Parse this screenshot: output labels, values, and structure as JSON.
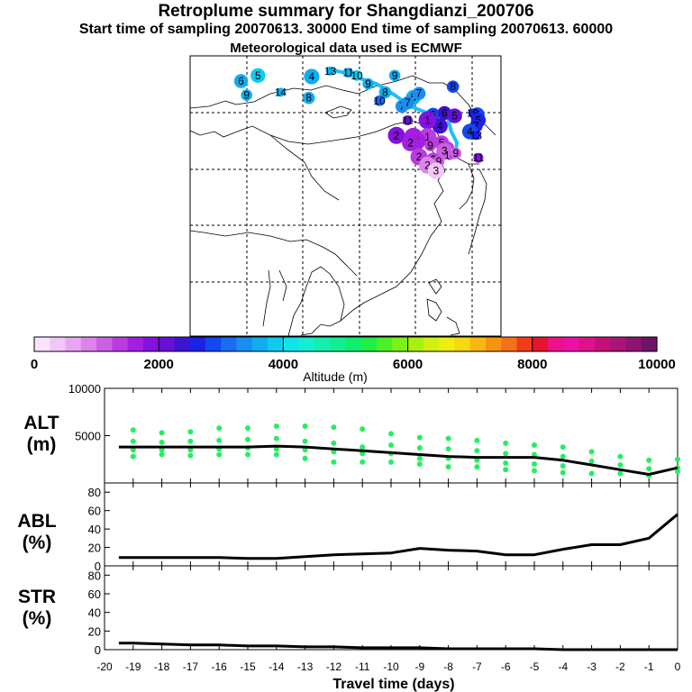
{
  "header": {
    "title": "Retroplume summary for Shangdianzi_200706",
    "sampling_line": "Start time of sampling 20070613. 30000     End time of sampling 20070613. 60000",
    "met_line": "Meteorological data used is ECMWF"
  },
  "colorbar": {
    "label": "Altitude (m)",
    "ticks": [
      "0",
      "2000",
      "4000",
      "6000",
      "8000",
      "10000"
    ],
    "colors": [
      "#fbe3fb",
      "#f2c6f6",
      "#e8a6f0",
      "#dc84ea",
      "#cc5fe4",
      "#ba3be0",
      "#a21fe0",
      "#8412de",
      "#6610d6",
      "#3e12d2",
      "#1c22e8",
      "#1448f0",
      "#1a6cf0",
      "#1a8ef0",
      "#10aef0",
      "#10cbee",
      "#12e3ea",
      "#14efd2",
      "#14efb0",
      "#12ef90",
      "#10ef6c",
      "#20ef46",
      "#4cef2a",
      "#7ef01a",
      "#a8f010",
      "#d0f010",
      "#eeee10",
      "#f6d810",
      "#f8b810",
      "#f69410",
      "#f4701a",
      "#f03c18",
      "#e6142e",
      "#ee108a",
      "#ee10a6",
      "#e0108c",
      "#c41078",
      "#aa1474",
      "#8c1470",
      "#6c1466"
    ]
  },
  "map": {
    "labels": [
      {
        "t": "13",
        "lon": 104.8,
        "lat": 54.3,
        "alt": 3600
      },
      {
        "t": "11",
        "lon": 108.0,
        "lat": 54.0,
        "alt": 3700
      },
      {
        "t": "10",
        "lon": 109.5,
        "lat": 53.5,
        "alt": 3800
      },
      {
        "t": "9",
        "lon": 111.5,
        "lat": 52.0,
        "alt": 3500
      },
      {
        "t": "9",
        "lon": 116.2,
        "lat": 53.5,
        "alt": 3600
      },
      {
        "t": "8",
        "lon": 114.5,
        "lat": 50.5,
        "alt": 3600
      },
      {
        "t": "8",
        "lon": 126.5,
        "lat": 51.5,
        "alt": 2800
      },
      {
        "t": "10",
        "lon": 113.5,
        "lat": 49.0,
        "alt": 3200
      },
      {
        "t": "5",
        "lon": 119.5,
        "lat": 49.6,
        "alt": 3700
      },
      {
        "t": "7",
        "lon": 120.5,
        "lat": 50.3,
        "alt": 3400
      },
      {
        "t": "7",
        "lon": 117.5,
        "lat": 48.0,
        "alt": 3300
      },
      {
        "t": "7",
        "lon": 118.5,
        "lat": 48.6,
        "alt": 3300
      },
      {
        "t": "6",
        "lon": 123.0,
        "lat": 46.5,
        "alt": 2900
      },
      {
        "t": "6",
        "lon": 125.0,
        "lat": 46.8,
        "alt": 2400
      },
      {
        "t": "5",
        "lon": 126.8,
        "lat": 46.3,
        "alt": 2200
      },
      {
        "t": "4",
        "lon": 124.2,
        "lat": 44.5,
        "alt": 2300
      },
      {
        "t": "5",
        "lon": 130.8,
        "lat": 46.5,
        "alt": 2800
      },
      {
        "t": "19",
        "lon": 130.0,
        "lat": 46.8,
        "alt": 2600
      },
      {
        "t": "5",
        "lon": 131.0,
        "lat": 45.5,
        "alt": 2600
      },
      {
        "t": "7",
        "lon": 130.6,
        "lat": 44.5,
        "alt": 2700
      },
      {
        "t": "4",
        "lon": 129.5,
        "lat": 43.5,
        "alt": 2800
      },
      {
        "t": "13",
        "lon": 130.6,
        "lat": 42.8,
        "alt": 2700
      },
      {
        "t": "1",
        "lon": 122.0,
        "lat": 45.5,
        "alt": 1800
      },
      {
        "t": "11",
        "lon": 118.5,
        "lat": 45.5,
        "alt": 2000
      },
      {
        "t": "2",
        "lon": 116.5,
        "lat": 42.8,
        "alt": 1900
      },
      {
        "t": "0",
        "lon": 119.5,
        "lat": 42.5,
        "alt": 1500
      },
      {
        "t": "1",
        "lon": 122.0,
        "lat": 42.5,
        "alt": 1400
      },
      {
        "t": "0",
        "lon": 120.0,
        "lat": 41.8,
        "alt": 1600
      },
      {
        "t": "2",
        "lon": 119.0,
        "lat": 41.5,
        "alt": 1500
      },
      {
        "t": "5",
        "lon": 124.5,
        "lat": 41.5,
        "alt": 1300
      },
      {
        "t": "9",
        "lon": 122.5,
        "lat": 41.0,
        "alt": 1400
      },
      {
        "t": "6",
        "lon": 125.5,
        "lat": 40.5,
        "alt": 1300
      },
      {
        "t": "3",
        "lon": 125.0,
        "lat": 40.0,
        "alt": 1000
      },
      {
        "t": "14",
        "lon": 126.0,
        "lat": 39.2,
        "alt": 1100
      },
      {
        "t": "9",
        "lon": 127.0,
        "lat": 39.6,
        "alt": 1200
      },
      {
        "t": "2",
        "lon": 120.5,
        "lat": 39.0,
        "alt": 1300
      },
      {
        "t": "6",
        "lon": 123.0,
        "lat": 38.5,
        "alt": 1400
      },
      {
        "t": "9",
        "lon": 124.0,
        "lat": 38.2,
        "alt": 1000
      },
      {
        "t": "2",
        "lon": 122.0,
        "lat": 37.5,
        "alt": 800
      },
      {
        "t": "3",
        "lon": 123.5,
        "lat": 36.5,
        "alt": 300
      },
      {
        "t": "11",
        "lon": 131.0,
        "lat": 38.8,
        "alt": 1900
      },
      {
        "t": "6",
        "lon": 89.0,
        "lat": 52.5,
        "alt": 3700
      },
      {
        "t": "5",
        "lon": 92.0,
        "lat": 53.5,
        "alt": 3800
      },
      {
        "t": "4",
        "lon": 101.5,
        "lat": 53.3,
        "alt": 3600
      },
      {
        "t": "14",
        "lon": 96.0,
        "lat": 50.5,
        "alt": 3500
      },
      {
        "t": "9",
        "lon": 90.0,
        "lat": 50.0,
        "alt": 3700
      },
      {
        "t": "8",
        "lon": 101.0,
        "lat": 49.5,
        "alt": 3600
      }
    ],
    "path": [
      [
        104.8,
        54.6
      ],
      [
        108.0,
        53.8
      ],
      [
        110.0,
        53.0
      ],
      [
        113.0,
        52.0
      ],
      [
        116.2,
        50.0
      ],
      [
        119.0,
        48.0
      ],
      [
        121.5,
        47.0
      ],
      [
        125.5,
        46.5
      ],
      [
        126.2,
        43.5
      ],
      [
        127.2,
        41.5
      ],
      [
        127.0,
        40.0
      ]
    ]
  },
  "chart_data": [
    {
      "type": "scatter+line",
      "ylabel": "ALT\n(m)",
      "ylabel_lines": [
        "ALT",
        "(m)"
      ],
      "ylim": [
        0,
        10000
      ],
      "yticks": [
        5000,
        10000
      ],
      "xlim": [
        -20,
        0
      ],
      "line": {
        "x": [
          -19.5,
          -19,
          -18,
          -17,
          -16,
          -15,
          -14,
          -13,
          -12,
          -11,
          -10,
          -9,
          -8,
          -7,
          -6,
          -5,
          -4,
          -3,
          -2,
          -1,
          0
        ],
        "y": [
          3800,
          3800,
          3800,
          3800,
          3800,
          3800,
          3900,
          3800,
          3600,
          3400,
          3200,
          3000,
          2800,
          2700,
          2700,
          2700,
          2400,
          1900,
          1400,
          900,
          1600
        ]
      },
      "points": {
        "x": [
          -19,
          -19,
          -19,
          -19,
          -18,
          -18,
          -18,
          -18,
          -17,
          -17,
          -17,
          -17,
          -16,
          -16,
          -16,
          -16,
          -15,
          -15,
          -15,
          -15,
          -14,
          -14,
          -14,
          -14,
          -13,
          -13,
          -13,
          -13,
          -12,
          -12,
          -12,
          -12,
          -11,
          -11,
          -11,
          -11,
          -10,
          -10,
          -10,
          -10,
          -9,
          -9,
          -9,
          -9,
          -8,
          -8,
          -8,
          -8,
          -7,
          -7,
          -7,
          -7,
          -6,
          -6,
          -6,
          -6,
          -5,
          -5,
          -5,
          -5,
          -4,
          -4,
          -4,
          -4,
          -3,
          -3,
          -3,
          -2,
          -2,
          -2,
          -1,
          -1,
          -1,
          0,
          0,
          0
        ],
        "y": [
          5600,
          4400,
          3500,
          2800,
          5300,
          4300,
          3500,
          3000,
          5400,
          4400,
          3500,
          2900,
          5800,
          4500,
          3600,
          3000,
          5800,
          4600,
          3700,
          3000,
          6000,
          4700,
          3600,
          3000,
          6000,
          4400,
          3500,
          2600,
          5900,
          4200,
          3300,
          2200,
          5700,
          3800,
          3100,
          2200,
          5200,
          4000,
          3100,
          2200,
          4800,
          3700,
          2600,
          2000,
          4700,
          3600,
          2600,
          1700,
          4500,
          3400,
          2400,
          1700,
          4200,
          3100,
          2100,
          1400,
          4000,
          3000,
          2000,
          1300,
          3800,
          2800,
          1800,
          1100,
          3300,
          2300,
          1000,
          2800,
          1900,
          1000,
          2400,
          1500,
          800,
          2500,
          1600,
          1200
        ],
        "color": "#22f060"
      }
    },
    {
      "type": "line",
      "ylabel": "ABL\n(%)",
      "ylabel_lines": [
        "ABL",
        "(%)"
      ],
      "ylim": [
        0,
        90
      ],
      "yticks": [
        0,
        20,
        40,
        60,
        80
      ],
      "x": [
        -19.5,
        -19,
        -18,
        -17,
        -16,
        -15,
        -14,
        -13,
        -12,
        -11,
        -10,
        -9,
        -8,
        -7,
        -6,
        -5,
        -4,
        -3,
        -2,
        -1,
        0
      ],
      "y": [
        9,
        9,
        9,
        9,
        9,
        8,
        8,
        10,
        12,
        13,
        14,
        19,
        17,
        16,
        12,
        12,
        18,
        23,
        23,
        30,
        56
      ]
    },
    {
      "type": "line",
      "ylabel": "STR\n(%)",
      "ylabel_lines": [
        "STR",
        "(%)"
      ],
      "ylim": [
        0,
        90
      ],
      "yticks": [
        0,
        20,
        40,
        60,
        80
      ],
      "x": [
        -19.5,
        -19,
        -18,
        -17,
        -16,
        -15,
        -14,
        -13,
        -12,
        -11,
        -10,
        -9,
        -8,
        -7,
        -6,
        -5,
        -4,
        -3,
        -2,
        -1,
        0
      ],
      "y": [
        7,
        7,
        6,
        5,
        5,
        4,
        4,
        3,
        3,
        2,
        2,
        2,
        1,
        1,
        1,
        1,
        0,
        0,
        0,
        0,
        0
      ]
    }
  ],
  "xaxis": {
    "label": "Travel time (days)",
    "ticks": [
      "-20",
      "-19",
      "-18",
      "-17",
      "-16",
      "-15",
      "-14",
      "-13",
      "-12",
      "-11",
      "-10",
      "-9",
      "-8",
      "-7",
      "-6",
      "-5",
      "-4",
      "-3",
      "-2",
      "-1",
      "0"
    ]
  }
}
